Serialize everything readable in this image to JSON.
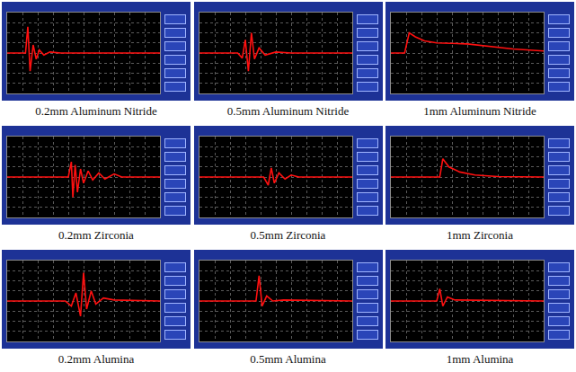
{
  "chart_data": [
    {
      "type": "line",
      "title": "0.2mm Aluminum Nitride",
      "x": [
        0,
        1.2,
        1.35,
        1.5,
        1.7,
        1.9,
        2.1,
        2.4,
        2.8,
        3.5,
        10
      ],
      "values": [
        0,
        0,
        2.6,
        -1.8,
        0.8,
        -0.6,
        0.3,
        -0.2,
        0.1,
        0,
        0
      ],
      "color": "#ff1010",
      "xlim": [
        0,
        10
      ],
      "ylim": [
        -4,
        4
      ],
      "xticks": [
        0,
        1,
        2,
        3,
        4,
        5,
        6,
        7,
        8,
        9,
        10
      ],
      "yticks": [
        -4,
        -3,
        -2,
        -1,
        0,
        1,
        2,
        3,
        4
      ],
      "grid": true,
      "tick_labels": false
    },
    {
      "type": "line",
      "title": "0.5mm Aluminum Nitride",
      "x": [
        0,
        2.5,
        2.8,
        3.0,
        3.2,
        3.4,
        3.6,
        3.9,
        4.3,
        5,
        6,
        10
      ],
      "values": [
        0,
        0,
        -0.5,
        1.3,
        -1.8,
        2.0,
        -0.6,
        0.5,
        -0.2,
        0.1,
        0,
        0
      ],
      "color": "#ff1010",
      "xlim": [
        0,
        10
      ],
      "ylim": [
        -4,
        4
      ],
      "xticks": [
        0,
        1,
        2,
        3,
        4,
        5,
        6,
        7,
        8,
        9,
        10
      ],
      "yticks": [
        -4,
        -3,
        -2,
        -1,
        0,
        1,
        2,
        3,
        4
      ],
      "grid": true,
      "tick_labels": false
    },
    {
      "type": "line",
      "title": "1mm Aluminum Nitride",
      "x": [
        0,
        0.9,
        1.2,
        1.6,
        2.2,
        3,
        5,
        7,
        8,
        10
      ],
      "values": [
        0,
        0,
        2.0,
        1.6,
        1.2,
        1.0,
        0.9,
        0.6,
        0.4,
        0.2
      ],
      "color": "#ff1010",
      "xlim": [
        0,
        10
      ],
      "ylim": [
        -4,
        4
      ],
      "xticks": [
        0,
        1,
        2,
        3,
        4,
        5,
        6,
        7,
        8,
        9,
        10
      ],
      "yticks": [
        -4,
        -3,
        -2,
        -1,
        0,
        1,
        2,
        3,
        4
      ],
      "grid": true,
      "tick_labels": false
    },
    {
      "type": "line",
      "title": "0.2mm Zirconia",
      "x": [
        0,
        4.0,
        4.2,
        4.3,
        4.45,
        4.6,
        4.8,
        5.0,
        5.3,
        5.6,
        6.0,
        6.4,
        7,
        7.5,
        10
      ],
      "values": [
        0,
        0,
        1.5,
        -2,
        1.2,
        -1.5,
        0.8,
        -0.6,
        0.6,
        -0.3,
        0.4,
        -0.2,
        0.3,
        0,
        0
      ],
      "color": "#ff1010",
      "xlim": [
        0,
        10
      ],
      "ylim": [
        -4,
        4
      ],
      "xticks": [
        0,
        1,
        2,
        3,
        4,
        5,
        6,
        7,
        8,
        9,
        10
      ],
      "yticks": [
        -4,
        -3,
        -2,
        -1,
        0,
        1,
        2,
        3,
        4
      ],
      "grid": true,
      "tick_labels": false
    },
    {
      "type": "line",
      "title": "0.5mm Zirconia",
      "x": [
        0,
        4.2,
        4.5,
        4.7,
        4.9,
        5.2,
        5.6,
        6,
        6.5,
        10
      ],
      "values": [
        0,
        0,
        -0.8,
        0.9,
        -0.6,
        0.4,
        -0.2,
        0.2,
        0,
        0
      ],
      "color": "#ff1010",
      "xlim": [
        0,
        10
      ],
      "ylim": [
        -4,
        4
      ],
      "xticks": [
        0,
        1,
        2,
        3,
        4,
        5,
        6,
        7,
        8,
        9,
        10
      ],
      "yticks": [
        -4,
        -3,
        -2,
        -1,
        0,
        1,
        2,
        3,
        4
      ],
      "grid": true,
      "tick_labels": false
    },
    {
      "type": "line",
      "title": "1mm Zirconia",
      "x": [
        0,
        3.2,
        3.4,
        3.8,
        4.5,
        5.5,
        7,
        10
      ],
      "values": [
        0,
        0,
        1.8,
        1.0,
        0.5,
        0.2,
        0.05,
        0
      ],
      "color": "#ff1010",
      "xlim": [
        0,
        10
      ],
      "ylim": [
        -4,
        4
      ],
      "xticks": [
        0,
        1,
        2,
        3,
        4,
        5,
        6,
        7,
        8,
        9,
        10
      ],
      "yticks": [
        -4,
        -3,
        -2,
        -1,
        0,
        1,
        2,
        3,
        4
      ],
      "grid": true,
      "tick_labels": false
    },
    {
      "type": "line",
      "title": "0.2mm Alumina",
      "x": [
        0,
        3.8,
        4.2,
        4.5,
        4.8,
        5.0,
        5.2,
        5.5,
        5.8,
        6.3,
        7,
        10
      ],
      "values": [
        0,
        0,
        -0.5,
        0.8,
        -1.5,
        2.8,
        -0.8,
        1.0,
        -0.3,
        0.3,
        0.1,
        0
      ],
      "color": "#ff1010",
      "xlim": [
        0,
        10
      ],
      "ylim": [
        -4,
        4
      ],
      "xticks": [
        0,
        1,
        2,
        3,
        4,
        5,
        6,
        7,
        8,
        9,
        10
      ],
      "yticks": [
        -4,
        -3,
        -2,
        -1,
        0,
        1,
        2,
        3,
        4
      ],
      "grid": true,
      "tick_labels": false
    },
    {
      "type": "line",
      "title": "0.5mm Alumina",
      "x": [
        0,
        3.7,
        3.9,
        4.1,
        4.4,
        4.8,
        5.5,
        10
      ],
      "values": [
        0,
        0,
        2.5,
        -0.5,
        0.5,
        0,
        0.1,
        0
      ],
      "color": "#ff1010",
      "xlim": [
        0,
        10
      ],
      "ylim": [
        -4,
        4
      ],
      "xticks": [
        0,
        1,
        2,
        3,
        4,
        5,
        6,
        7,
        8,
        9,
        10
      ],
      "yticks": [
        -4,
        -3,
        -2,
        -1,
        0,
        1,
        2,
        3,
        4
      ],
      "grid": true,
      "tick_labels": false
    },
    {
      "type": "line",
      "title": "1mm Alumina",
      "x": [
        0,
        3.0,
        3.2,
        3.4,
        3.7,
        4.2,
        10
      ],
      "values": [
        0,
        0,
        1.2,
        -0.5,
        0.4,
        0.1,
        0
      ],
      "color": "#ff1010",
      "xlim": [
        0,
        10
      ],
      "ylim": [
        -4,
        4
      ],
      "xticks": [
        0,
        1,
        2,
        3,
        4,
        5,
        6,
        7,
        8,
        9,
        10
      ],
      "yticks": [
        -4,
        -3,
        -2,
        -1,
        0,
        1,
        2,
        3,
        4
      ],
      "grid": true,
      "tick_labels": false
    }
  ]
}
